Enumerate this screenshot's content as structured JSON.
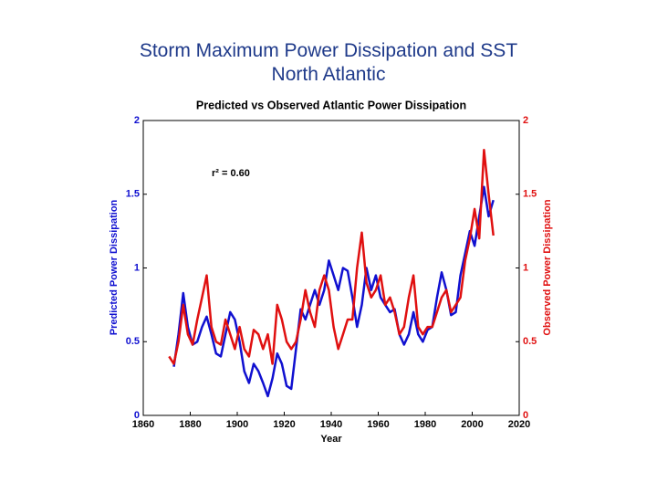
{
  "header": {
    "title": "Storm Maximum Power Dissipation and SST",
    "subtitle": "North Atlantic"
  },
  "chart_data": {
    "type": "line",
    "title": "Predicted vs Observed Atlantic Power Dissipation",
    "annotation": "r² = 0.60",
    "x_label": "Year",
    "y_label": "Predicted Power Dissipation",
    "y2_label": "Observed Power Dissipation",
    "x": [
      1871,
      1873,
      1875,
      1877,
      1879,
      1881,
      1883,
      1885,
      1887,
      1889,
      1891,
      1893,
      1895,
      1897,
      1899,
      1901,
      1903,
      1905,
      1907,
      1909,
      1911,
      1913,
      1915,
      1917,
      1919,
      1921,
      1923,
      1925,
      1927,
      1929,
      1931,
      1933,
      1935,
      1937,
      1939,
      1941,
      1943,
      1945,
      1947,
      1949,
      1951,
      1953,
      1955,
      1957,
      1959,
      1961,
      1963,
      1965,
      1967,
      1969,
      1971,
      1973,
      1975,
      1977,
      1979,
      1981,
      1983,
      1985,
      1987,
      1989,
      1991,
      1993,
      1995,
      1997,
      1999,
      2001,
      2003,
      2005,
      2007,
      2009
    ],
    "series": [
      {
        "name": "Predicted Power Dissipation",
        "color": "#1010d0",
        "axis": "y",
        "values": [
          null,
          0.33,
          0.55,
          0.83,
          0.6,
          0.48,
          0.5,
          0.6,
          0.67,
          0.55,
          0.42,
          0.4,
          0.55,
          0.7,
          0.65,
          0.5,
          0.3,
          0.22,
          0.35,
          0.3,
          0.22,
          0.13,
          0.25,
          0.42,
          0.35,
          0.2,
          0.18,
          0.45,
          0.72,
          0.65,
          0.75,
          0.85,
          0.75,
          0.85,
          1.05,
          0.95,
          0.85,
          1.0,
          0.98,
          0.8,
          0.6,
          0.75,
          1.0,
          0.85,
          0.95,
          0.8,
          0.75,
          0.7,
          0.72,
          0.55,
          0.48,
          0.55,
          0.7,
          0.55,
          0.5,
          0.58,
          0.6,
          0.8,
          0.97,
          0.85,
          0.68,
          0.7,
          0.95,
          1.1,
          1.25,
          1.15,
          1.35,
          1.55,
          1.35,
          1.46
        ]
      },
      {
        "name": "Observed Power Dissipation",
        "color": "#e01010",
        "axis": "y2",
        "values": [
          0.4,
          0.35,
          0.5,
          0.75,
          0.55,
          0.48,
          0.65,
          0.8,
          0.95,
          0.6,
          0.5,
          0.48,
          0.65,
          0.55,
          0.45,
          0.6,
          0.45,
          0.4,
          0.58,
          0.55,
          0.45,
          0.55,
          0.35,
          0.75,
          0.65,
          0.5,
          0.45,
          0.5,
          0.65,
          0.85,
          0.7,
          0.6,
          0.85,
          0.95,
          0.85,
          0.6,
          0.45,
          0.55,
          0.65,
          0.65,
          1.0,
          1.24,
          0.9,
          0.8,
          0.85,
          0.95,
          0.75,
          0.8,
          0.7,
          0.55,
          0.6,
          0.8,
          0.95,
          0.6,
          0.55,
          0.6,
          0.6,
          0.7,
          0.8,
          0.85,
          0.7,
          0.75,
          0.8,
          1.05,
          1.2,
          1.4,
          1.2,
          1.8,
          1.5,
          1.22
        ]
      }
    ],
    "xlim": [
      1860,
      2020
    ],
    "xticks": [
      1860,
      1880,
      1900,
      1920,
      1940,
      1960,
      1980,
      2000,
      2020
    ],
    "ylim": [
      0,
      2
    ],
    "yticks": [
      0,
      0.5,
      1,
      1.5,
      2
    ],
    "y2lim": [
      0,
      2
    ],
    "y2ticks": [
      0,
      0.5,
      1,
      1.5,
      2
    ]
  }
}
